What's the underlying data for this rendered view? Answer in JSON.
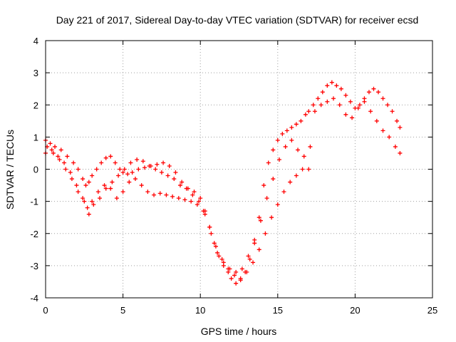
{
  "chart_data": {
    "type": "scatter",
    "title": "Day 221 of 2017, Sidereal Day-to-day VTEC variation (SDTVAR) for receiver ecsd",
    "xlabel": "GPS time / hours",
    "ylabel": "SDTVAR / TECUs",
    "xlim": [
      0,
      25
    ],
    "ylim": [
      -4,
      4
    ],
    "xticks": [
      "0",
      "5",
      "10",
      "15",
      "20",
      "25"
    ],
    "yticks": [
      "-4",
      "-3",
      "-2",
      "-1",
      "0",
      "1",
      "2",
      "3",
      "4"
    ],
    "grid": true,
    "marker": "plus",
    "colors": {
      "series": "#ff0000",
      "grid": "#a0a0a0",
      "axes": "#000000"
    },
    "series": [
      {
        "x": [
          0.0,
          0.3,
          0.6,
          1.0,
          1.4,
          1.8,
          2.1,
          2.4,
          2.6,
          2.8,
          3.0,
          3.3,
          3.6,
          3.9,
          4.2,
          4.5,
          4.8,
          5.0,
          5.3,
          5.6,
          6.0,
          6.4,
          6.8,
          7.2,
          7.6,
          8.0,
          8.4,
          8.8,
          9.2,
          9.6,
          10.0,
          10.3,
          10.6,
          10.9,
          11.2,
          11.5,
          11.8,
          12.0,
          12.3,
          12.6,
          12.9,
          13.2,
          13.5,
          13.8,
          14.1,
          14.4,
          14.7,
          15.0,
          15.3,
          15.6,
          15.9,
          16.2,
          16.5,
          16.8,
          17.0,
          17.3,
          17.6,
          17.9,
          18.2,
          18.5,
          18.8,
          19.1,
          19.4,
          19.7,
          20.0,
          20.3,
          20.6,
          20.9,
          21.2,
          21.5,
          21.8,
          22.1,
          22.4,
          22.7,
          22.9
        ],
        "y": [
          0.9,
          0.8,
          0.7,
          0.6,
          0.4,
          0.2,
          0.0,
          -0.3,
          -0.5,
          -0.4,
          -0.2,
          0.0,
          0.2,
          0.35,
          0.4,
          0.2,
          0.0,
          -0.1,
          -0.15,
          -0.1,
          0.0,
          0.05,
          0.1,
          0.15,
          0.2,
          0.1,
          -0.1,
          -0.4,
          -0.6,
          -0.7,
          -0.9,
          -1.3,
          -1.8,
          -2.3,
          -2.7,
          -3.0,
          -3.2,
          -3.4,
          -3.55,
          -3.45,
          -3.2,
          -2.8,
          -2.3,
          -1.5,
          -0.5,
          0.2,
          0.6,
          0.9,
          1.1,
          1.2,
          1.3,
          1.4,
          1.5,
          1.7,
          1.8,
          2.0,
          2.2,
          2.4,
          2.6,
          2.7,
          2.6,
          2.5,
          2.3,
          2.1,
          1.9,
          2.0,
          2.2,
          2.4,
          2.5,
          2.4,
          2.2,
          2.0,
          1.8,
          1.5,
          1.3
        ]
      },
      {
        "x": [
          0.0,
          0.4,
          0.8,
          1.2,
          1.6,
          2.0,
          2.4,
          2.7,
          3.0,
          3.4,
          3.8,
          4.2,
          4.6,
          5.0,
          5.4,
          5.8,
          6.2,
          6.6,
          7.0,
          7.4,
          7.8,
          8.2,
          8.6,
          9.0,
          9.4,
          9.8,
          10.2,
          10.6,
          11.0,
          11.4,
          11.8,
          12.2,
          12.6,
          13.0,
          13.4,
          13.8,
          14.2,
          14.6,
          15.0,
          15.4,
          15.8,
          16.2,
          16.6,
          17.0,
          17.4,
          17.8,
          18.2,
          18.6,
          19.0,
          19.4,
          19.8,
          20.2,
          20.6,
          21.0,
          21.4,
          21.8,
          22.2,
          22.6,
          22.9
        ],
        "y": [
          0.5,
          0.6,
          0.4,
          0.2,
          -0.1,
          -0.5,
          -0.9,
          -1.2,
          -1.0,
          -0.7,
          -0.5,
          -0.6,
          -0.9,
          -0.7,
          -0.4,
          -0.3,
          -0.5,
          -0.7,
          -0.8,
          -0.75,
          -0.8,
          -0.85,
          -0.9,
          -0.95,
          -1.0,
          -1.1,
          -1.3,
          -1.8,
          -2.4,
          -2.8,
          -3.1,
          -3.3,
          -3.4,
          -3.2,
          -2.9,
          -2.5,
          -2.0,
          -1.5,
          -1.1,
          -0.7,
          -0.4,
          -0.2,
          0.0,
          0.0,
          1.8,
          2.0,
          2.1,
          2.2,
          2.0,
          1.7,
          1.6,
          1.9,
          2.1,
          1.8,
          1.5,
          1.2,
          1.0,
          0.7,
          0.5
        ]
      },
      {
        "x": [
          0.1,
          0.5,
          0.9,
          1.3,
          1.7,
          2.1,
          2.5,
          2.8,
          3.1,
          3.5,
          3.9,
          4.3,
          4.7,
          5.1,
          5.5,
          5.9,
          6.3,
          6.7,
          7.1,
          7.5,
          7.9,
          8.3,
          8.7,
          9.1,
          9.5,
          9.9,
          10.3,
          10.7,
          11.1,
          11.5,
          11.9,
          12.3,
          12.7,
          13.1,
          13.5,
          13.9,
          14.3,
          14.7,
          15.1,
          15.5,
          15.9,
          16.3,
          16.7,
          17.1
        ],
        "y": [
          0.7,
          0.5,
          0.3,
          0.0,
          -0.3,
          -0.7,
          -1.0,
          -1.4,
          -1.1,
          -0.9,
          -0.6,
          -0.4,
          -0.2,
          0.0,
          0.2,
          0.3,
          0.25,
          0.1,
          0.0,
          -0.1,
          -0.2,
          -0.3,
          -0.5,
          -0.6,
          -0.8,
          -1.0,
          -1.4,
          -2.0,
          -2.6,
          -2.9,
          -3.1,
          -3.2,
          -3.1,
          -2.7,
          -2.2,
          -1.6,
          -0.9,
          -0.3,
          0.3,
          0.7,
          0.9,
          0.6,
          0.4,
          0.7
        ]
      }
    ]
  }
}
